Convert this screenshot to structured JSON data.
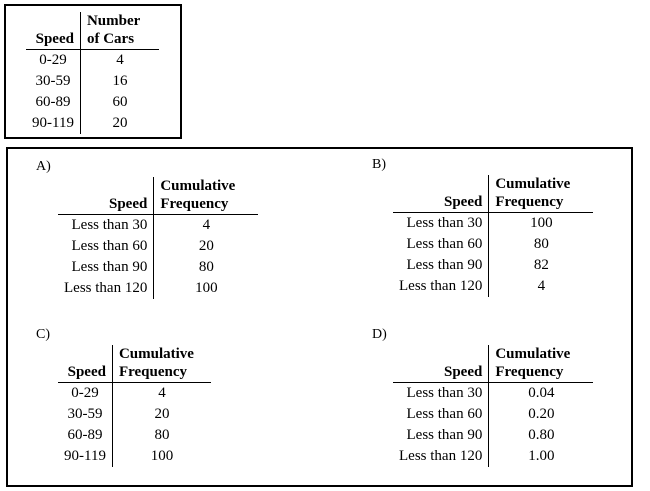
{
  "given": {
    "col1": "Speed",
    "col2": "Number of Cars",
    "rows": [
      [
        "0-29",
        "4"
      ],
      [
        "30-59",
        "16"
      ],
      [
        "60-89",
        "60"
      ],
      [
        "90-119",
        "20"
      ]
    ]
  },
  "options": [
    {
      "label": "A)",
      "col1": "Speed",
      "col2": "Cumulative Frequency",
      "rows": [
        [
          "Less than 30",
          "4"
        ],
        [
          "Less than 60",
          "20"
        ],
        [
          "Less than 90",
          "80"
        ],
        [
          "Less than 120",
          "100"
        ]
      ]
    },
    {
      "label": "B)",
      "col1": "Speed",
      "col2": "Cumulative Frequency",
      "rows": [
        [
          "Less than 30",
          "100"
        ],
        [
          "Less than 60",
          "80"
        ],
        [
          "Less than 90",
          "82"
        ],
        [
          "Less than 120",
          "4"
        ]
      ]
    },
    {
      "label": "C)",
      "col1": "Speed",
      "col2": "Cumulative Frequency",
      "rows": [
        [
          "0-29",
          "4"
        ],
        [
          "30-59",
          "20"
        ],
        [
          "60-89",
          "80"
        ],
        [
          "90-119",
          "100"
        ]
      ]
    },
    {
      "label": "D)",
      "col1": "Speed",
      "col2": "Cumulative Frequency",
      "rows": [
        [
          "Less than 30",
          "0.04"
        ],
        [
          "Less than 60",
          "0.20"
        ],
        [
          "Less than 90",
          "0.80"
        ],
        [
          "Less than 120",
          "1.00"
        ]
      ]
    }
  ]
}
